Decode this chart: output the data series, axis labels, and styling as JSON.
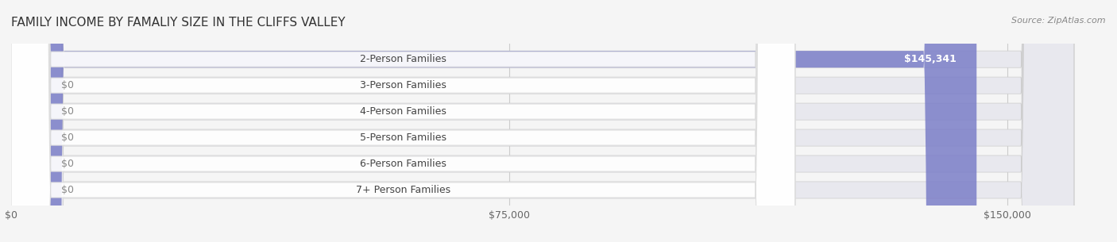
{
  "title": "FAMILY INCOME BY FAMALIY SIZE IN THE CLIFFS VALLEY",
  "source": "Source: ZipAtlas.com",
  "categories": [
    "2-Person Families",
    "3-Person Families",
    "4-Person Families",
    "5-Person Families",
    "6-Person Families",
    "7+ Person Families"
  ],
  "values": [
    145341,
    0,
    0,
    0,
    0,
    0
  ],
  "bar_colors": [
    "#7b7ec8",
    "#f08080",
    "#f5c07a",
    "#f4a0a0",
    "#a8c4e0",
    "#c4a8d4"
  ],
  "label_bg_colors": [
    "#7b7ec8",
    "#f08080",
    "#f5c07a",
    "#f4a0a0",
    "#a8c4e0",
    "#c4a8d4"
  ],
  "xlim": [
    0,
    160000
  ],
  "xticks": [
    0,
    75000,
    150000
  ],
  "xtick_labels": [
    "$0",
    "$75,000",
    "$150,000"
  ],
  "bg_color": "#f5f5f5",
  "bar_bg_color": "#e8e8ee",
  "title_fontsize": 11,
  "source_fontsize": 8,
  "label_fontsize": 9,
  "value_fontsize": 9
}
